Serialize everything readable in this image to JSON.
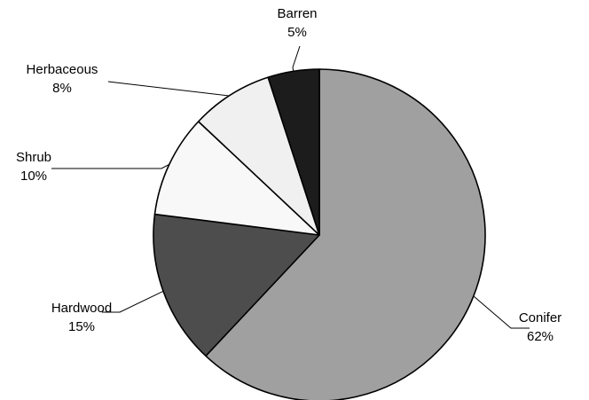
{
  "chart_data": {
    "type": "pie",
    "title": "",
    "start_angle_deg": 0,
    "direction": "clockwise",
    "slices": [
      {
        "label": "Conifer",
        "value": 62,
        "value_label": "62%",
        "color": "#a0a0a0"
      },
      {
        "label": "Hardwood",
        "value": 15,
        "value_label": "15%",
        "color": "#4d4d4d"
      },
      {
        "label": "Shrub",
        "value": 10,
        "value_label": "10%",
        "color": "#f8f8f8"
      },
      {
        "label": "Herbaceous",
        "value": 8,
        "value_label": "8%",
        "color": "#f0f0f0"
      },
      {
        "label": "Barren",
        "value": 5,
        "value_label": "5%",
        "color": "#1c1c1c"
      }
    ],
    "legend": "none",
    "outline_color": "#000000"
  }
}
